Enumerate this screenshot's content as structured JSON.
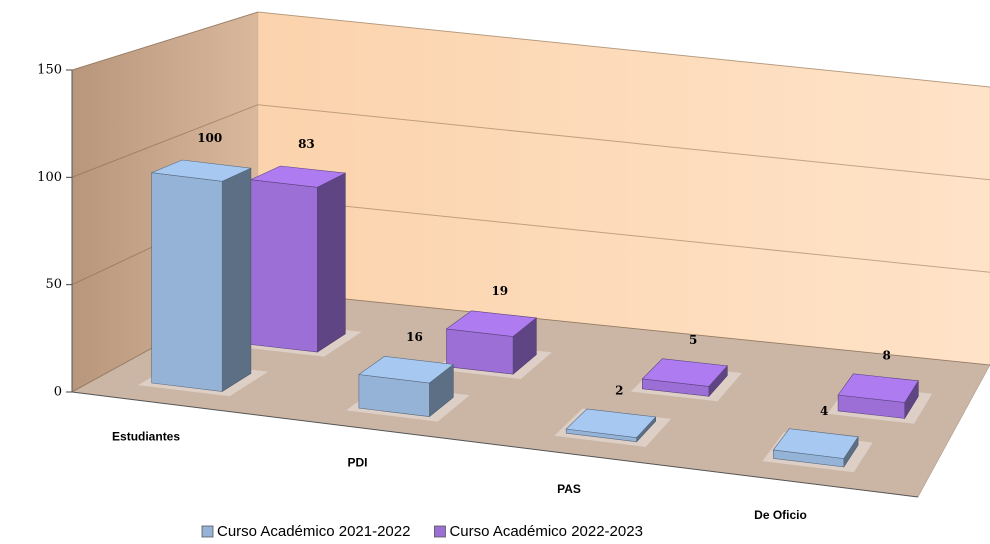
{
  "chart_data": {
    "type": "bar3d",
    "categories": [
      "Estudiantes",
      "PDI",
      "PAS",
      "De Oficio"
    ],
    "series": [
      {
        "name": "Curso Académico 2021-2022",
        "color": "#95b3d7",
        "values": [
          100,
          16,
          2,
          4
        ]
      },
      {
        "name": "Curso Académico 2022-2023",
        "color": "#9b6fd6",
        "values": [
          83,
          19,
          5,
          8
        ]
      }
    ],
    "ylim": [
      0,
      150
    ],
    "yticks": [
      0,
      50,
      100,
      150
    ],
    "grid": true,
    "legend": "bottom"
  }
}
